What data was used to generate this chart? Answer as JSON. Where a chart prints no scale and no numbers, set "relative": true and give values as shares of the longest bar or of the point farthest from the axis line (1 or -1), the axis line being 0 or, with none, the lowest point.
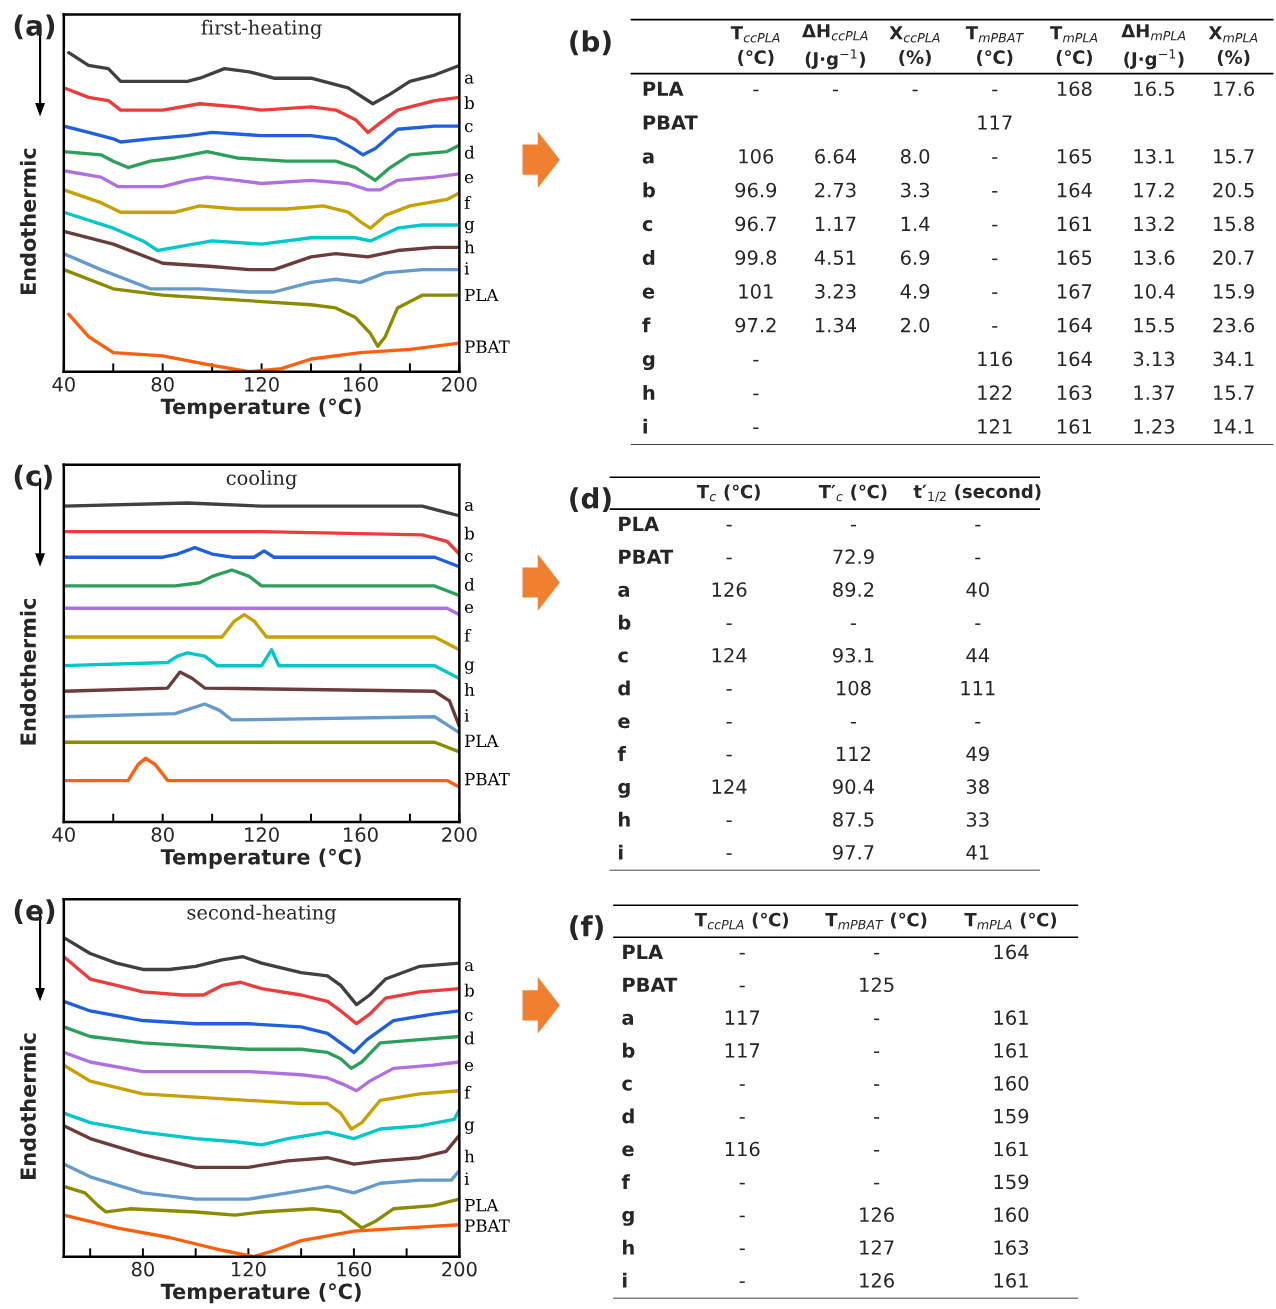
{
  "chart_data": [
    {
      "type": "line",
      "title": "first-heating",
      "xlabel": "Temperature (°C)",
      "ylabel": "Endothermic",
      "annotations": [
        "(a)"
      ],
      "relative": true,
      "xlim": [
        40,
        200
      ],
      "xticks": [
        40,
        {
          "value": 60,
          "label": null
        },
        80,
        {
          "value": 100,
          "label": null
        },
        120,
        {
          "value": 140,
          "label": null
        },
        160,
        {
          "value": 180,
          "label": null
        },
        200
      ],
      "series": [
        {
          "name": "a",
          "color": "#404040",
          "x": [
            42,
            50,
            58,
            63,
            80,
            90,
            95,
            105,
            115,
            125,
            140,
            155,
            165,
            172,
            180,
            190,
            200
          ],
          "values": [
            1.0,
            0.96,
            0.95,
            0.91,
            0.91,
            0.91,
            0.92,
            0.95,
            0.94,
            0.92,
            0.92,
            0.89,
            0.84,
            0.87,
            0.91,
            0.93,
            0.96
          ]
        },
        {
          "name": "b",
          "color": "#ef3b3b",
          "x": [
            40,
            50,
            58,
            63,
            80,
            95,
            110,
            120,
            140,
            150,
            158,
            163,
            168,
            175,
            190,
            200
          ],
          "values": [
            0.89,
            0.86,
            0.85,
            0.82,
            0.82,
            0.84,
            0.83,
            0.82,
            0.83,
            0.82,
            0.79,
            0.75,
            0.78,
            0.82,
            0.85,
            0.86
          ]
        },
        {
          "name": "c",
          "color": "#1f5fe0",
          "x": [
            40,
            50,
            60,
            63,
            75,
            90,
            100,
            120,
            140,
            150,
            157,
            161,
            166,
            175,
            190,
            200
          ],
          "values": [
            0.77,
            0.75,
            0.73,
            0.72,
            0.73,
            0.74,
            0.75,
            0.74,
            0.74,
            0.73,
            0.7,
            0.68,
            0.7,
            0.76,
            0.77,
            0.77
          ]
        },
        {
          "name": "d",
          "color": "#2ca05a",
          "x": [
            40,
            55,
            60,
            66,
            75,
            85,
            98,
            110,
            130,
            150,
            158,
            166,
            172,
            180,
            195,
            200
          ],
          "values": [
            0.69,
            0.68,
            0.66,
            0.64,
            0.66,
            0.67,
            0.69,
            0.67,
            0.66,
            0.66,
            0.64,
            0.6,
            0.64,
            0.68,
            0.69,
            0.71
          ]
        },
        {
          "name": "e",
          "color": "#b070e0",
          "x": [
            40,
            55,
            62,
            80,
            90,
            98,
            110,
            120,
            140,
            155,
            163,
            168,
            175,
            190,
            200
          ],
          "values": [
            0.63,
            0.61,
            0.58,
            0.58,
            0.6,
            0.61,
            0.6,
            0.59,
            0.6,
            0.59,
            0.57,
            0.57,
            0.6,
            0.61,
            0.62
          ]
        },
        {
          "name": "f",
          "color": "#c8a000",
          "x": [
            40,
            55,
            63,
            85,
            95,
            110,
            130,
            145,
            155,
            160,
            164,
            170,
            180,
            195,
            200
          ],
          "values": [
            0.57,
            0.53,
            0.5,
            0.5,
            0.52,
            0.51,
            0.51,
            0.52,
            0.5,
            0.47,
            0.45,
            0.49,
            0.52,
            0.54,
            0.56
          ]
        },
        {
          "name": "g",
          "color": "#00c8c8",
          "x": [
            40,
            60,
            72,
            78,
            85,
            100,
            120,
            140,
            150,
            158,
            164,
            175,
            185,
            200
          ],
          "values": [
            0.5,
            0.45,
            0.41,
            0.38,
            0.39,
            0.41,
            0.4,
            0.42,
            0.42,
            0.42,
            0.41,
            0.45,
            0.46,
            0.46
          ]
        },
        {
          "name": "h",
          "color": "#6b3c3c",
          "x": [
            40,
            60,
            80,
            100,
            115,
            125,
            140,
            150,
            163,
            175,
            190,
            200
          ],
          "values": [
            0.44,
            0.4,
            0.34,
            0.33,
            0.32,
            0.32,
            0.36,
            0.37,
            0.36,
            0.38,
            0.39,
            0.39
          ]
        },
        {
          "name": "i",
          "color": "#6699cc",
          "x": [
            40,
            55,
            75,
            95,
            115,
            125,
            140,
            150,
            160,
            170,
            185,
            200
          ],
          "values": [
            0.37,
            0.32,
            0.26,
            0.26,
            0.25,
            0.25,
            0.28,
            0.29,
            0.28,
            0.31,
            0.32,
            0.32
          ]
        },
        {
          "name": "PLA",
          "color": "#8b8b00",
          "x": [
            40,
            60,
            80,
            100,
            120,
            140,
            150,
            158,
            164,
            167,
            170,
            175,
            185,
            200
          ],
          "values": [
            0.32,
            0.26,
            0.24,
            0.23,
            0.22,
            0.21,
            0.2,
            0.17,
            0.12,
            0.08,
            0.11,
            0.2,
            0.24,
            0.24
          ]
        },
        {
          "name": "PBAT",
          "color": "#ff6010",
          "x": [
            42,
            50,
            60,
            80,
            100,
            115,
            128,
            140,
            160,
            180,
            200
          ],
          "values": [
            0.18,
            0.11,
            0.06,
            0.05,
            0.02,
            0.0,
            0.01,
            0.04,
            0.06,
            0.07,
            0.09
          ]
        }
      ]
    },
    {
      "type": "other",
      "annotations": [
        "(b)"
      ],
      "categories": [
        "T$_{ccPLA}$\n(℃)",
        "ΔH$_{ccPLA}$\n(J·g$^{−1}$)",
        "X$_{ccPLA}$\n(%)",
        "T$_{mPBAT}$\n(℃)",
        "T$_{mPLA}$\n(℃)",
        "ΔH$_{mPLA}$\n(J·g$^{−1}$)",
        "X$_{mPLA}$\n(%)"
      ],
      "y_categories": [
        "PLA",
        "PBAT",
        "a",
        "b",
        "c",
        "d",
        "e",
        "f",
        "g",
        "h",
        "i"
      ],
      "cell_labels": [
        [
          "-",
          "-",
          "-",
          "-",
          "168",
          "16.5",
          "17.6"
        ],
        [
          null,
          null,
          null,
          "117",
          null,
          null,
          null
        ],
        [
          "106",
          "6.64",
          "8.0",
          "-",
          "165",
          "13.1",
          "15.7"
        ],
        [
          "96.9",
          "2.73",
          "3.3",
          "-",
          "164",
          "17.2",
          "20.5"
        ],
        [
          "96.7",
          "1.17",
          "1.4",
          "-",
          "161",
          "13.2",
          "15.8"
        ],
        [
          "99.8",
          "4.51",
          "6.9",
          "-",
          "165",
          "13.6",
          "20.7"
        ],
        [
          "101",
          "3.23",
          "4.9",
          "-",
          "167",
          "10.4",
          "15.9"
        ],
        [
          "97.2",
          "1.34",
          "2.0",
          "-",
          "164",
          "15.5",
          "23.6"
        ],
        [
          "-",
          null,
          null,
          "116",
          "164",
          "3.13",
          "34.1"
        ],
        [
          "-",
          null,
          null,
          "122",
          "163",
          "1.37",
          "15.7"
        ],
        [
          "-",
          null,
          null,
          "121",
          "161",
          "1.23",
          "14.1"
        ]
      ]
    },
    {
      "type": "line",
      "title": "cooling",
      "xlabel": "Temperature (°C)",
      "ylabel": "Endothermic",
      "annotations": [
        "(c)"
      ],
      "relative": true,
      "xlim": [
        40,
        200
      ],
      "xticks": [
        40,
        {
          "value": 60,
          "label": null
        },
        80,
        {
          "value": 100,
          "label": null
        },
        120,
        {
          "value": 140,
          "label": null
        },
        160,
        {
          "value": 180,
          "label": null
        },
        200
      ],
      "series": [
        {
          "name": "a",
          "color": "#404040",
          "x": [
            40,
            90,
            120,
            185,
            195,
            200
          ],
          "values": [
            0.99,
            1.0,
            0.99,
            0.99,
            0.97,
            0.96
          ]
        },
        {
          "name": "b",
          "color": "#ef3b3b",
          "x": [
            40,
            120,
            185,
            195,
            200
          ],
          "values": [
            0.91,
            0.91,
            0.9,
            0.88,
            0.84
          ]
        },
        {
          "name": "c",
          "color": "#1f5fe0",
          "x": [
            40,
            80,
            86,
            93,
            100,
            108,
            117,
            121,
            125,
            190,
            200
          ],
          "values": [
            0.83,
            0.83,
            0.84,
            0.86,
            0.84,
            0.83,
            0.83,
            0.85,
            0.83,
            0.83,
            0.8
          ]
        },
        {
          "name": "d",
          "color": "#2ca05a",
          "x": [
            40,
            85,
            95,
            100,
            108,
            115,
            120,
            190,
            200
          ],
          "values": [
            0.74,
            0.74,
            0.75,
            0.77,
            0.79,
            0.77,
            0.74,
            0.74,
            0.71
          ]
        },
        {
          "name": "e",
          "color": "#b070e0",
          "x": [
            40,
            195,
            200
          ],
          "values": [
            0.67,
            0.67,
            0.65
          ]
        },
        {
          "name": "f",
          "color": "#c8a000",
          "x": [
            40,
            104,
            109,
            113,
            117,
            122,
            190,
            200
          ],
          "values": [
            0.58,
            0.58,
            0.63,
            0.65,
            0.63,
            0.58,
            0.58,
            0.54
          ]
        },
        {
          "name": "g",
          "color": "#00c8c8",
          "x": [
            40,
            82,
            86,
            90,
            97,
            102,
            120,
            124,
            127,
            190,
            200
          ],
          "values": [
            0.49,
            0.5,
            0.52,
            0.53,
            0.52,
            0.49,
            0.49,
            0.54,
            0.49,
            0.49,
            0.45
          ]
        },
        {
          "name": "h",
          "color": "#6b3c3c",
          "x": [
            40,
            82,
            87,
            92,
            97,
            190,
            196,
            200
          ],
          "values": [
            0.41,
            0.42,
            0.47,
            0.45,
            0.42,
            0.41,
            0.38,
            0.3
          ]
        },
        {
          "name": "i",
          "color": "#6699cc",
          "x": [
            40,
            85,
            97,
            103,
            108,
            190,
            200
          ],
          "values": [
            0.33,
            0.34,
            0.37,
            0.35,
            0.32,
            0.33,
            0.28
          ]
        },
        {
          "name": "PLA",
          "color": "#8b8b00",
          "x": [
            40,
            190,
            200
          ],
          "values": [
            0.25,
            0.25,
            0.22
          ]
        },
        {
          "name": "PBAT",
          "color": "#ff6010",
          "x": [
            40,
            66,
            70,
            73,
            77,
            82,
            195,
            200
          ],
          "values": [
            0.13,
            0.13,
            0.18,
            0.2,
            0.18,
            0.13,
            0.13,
            0.11
          ]
        }
      ]
    },
    {
      "type": "other",
      "annotations": [
        "(d)"
      ],
      "categories": [
        "T$_{c}$ (℃)",
        "T′$_{c}$ (℃)",
        "t′$_{1/2}$ (second)"
      ],
      "y_categories": [
        "PLA",
        "PBAT",
        "a",
        "b",
        "c",
        "d",
        "e",
        "f",
        "g",
        "h",
        "i"
      ],
      "cell_labels": [
        [
          "-",
          "-",
          "-"
        ],
        [
          "-",
          "72.9",
          "-"
        ],
        [
          "126",
          "89.2",
          "40"
        ],
        [
          "-",
          "-",
          "-"
        ],
        [
          "124",
          "93.1",
          "44"
        ],
        [
          "-",
          "108",
          "111"
        ],
        [
          "-",
          "-",
          "-"
        ],
        [
          "-",
          "112",
          "49"
        ],
        [
          "124",
          "90.4",
          "38"
        ],
        [
          "-",
          "87.5",
          "33"
        ],
        [
          "-",
          "97.7",
          "41"
        ]
      ]
    },
    {
      "type": "line",
      "title": "second-heating",
      "xlabel": "Temperature (°C)",
      "ylabel": "Endothermic",
      "annotations": [
        "(e)"
      ],
      "relative": true,
      "xlim": [
        50,
        200
      ],
      "xticks": [
        {
          "value": 60,
          "label": null
        },
        80,
        {
          "value": 100,
          "label": null
        },
        120,
        {
          "value": 140,
          "label": null
        },
        160,
        {
          "value": 180,
          "label": null
        },
        200
      ],
      "series": [
        {
          "name": "a",
          "color": "#404040",
          "x": [
            50,
            60,
            70,
            80,
            90,
            100,
            110,
            118,
            125,
            140,
            150,
            155,
            161,
            166,
            172,
            185,
            200
          ],
          "values": [
            1.0,
            0.95,
            0.92,
            0.9,
            0.9,
            0.91,
            0.93,
            0.94,
            0.92,
            0.89,
            0.88,
            0.85,
            0.79,
            0.82,
            0.87,
            0.91,
            0.92
          ]
        },
        {
          "name": "b",
          "color": "#ef3b3b",
          "x": [
            50,
            60,
            70,
            80,
            95,
            103,
            110,
            117,
            125,
            140,
            150,
            155,
            161,
            166,
            172,
            185,
            200
          ],
          "values": [
            0.94,
            0.87,
            0.85,
            0.83,
            0.82,
            0.82,
            0.85,
            0.86,
            0.84,
            0.82,
            0.8,
            0.77,
            0.73,
            0.76,
            0.81,
            0.83,
            0.84
          ]
        },
        {
          "name": "c",
          "color": "#1f5fe0",
          "x": [
            50,
            60,
            80,
            100,
            120,
            140,
            150,
            155,
            160,
            165,
            175,
            190,
            200
          ],
          "values": [
            0.8,
            0.77,
            0.74,
            0.73,
            0.73,
            0.72,
            0.7,
            0.67,
            0.64,
            0.68,
            0.74,
            0.76,
            0.77
          ]
        },
        {
          "name": "d",
          "color": "#2ca05a",
          "x": [
            50,
            60,
            80,
            100,
            120,
            140,
            150,
            155,
            159,
            163,
            170,
            185,
            200
          ],
          "values": [
            0.72,
            0.69,
            0.67,
            0.66,
            0.65,
            0.65,
            0.64,
            0.62,
            0.59,
            0.61,
            0.67,
            0.68,
            0.69
          ]
        },
        {
          "name": "e",
          "color": "#b070e0",
          "x": [
            50,
            60,
            80,
            100,
            120,
            140,
            150,
            156,
            161,
            166,
            175,
            190,
            200
          ],
          "values": [
            0.64,
            0.61,
            0.58,
            0.58,
            0.58,
            0.57,
            0.56,
            0.54,
            0.52,
            0.55,
            0.59,
            0.6,
            0.61
          ]
        },
        {
          "name": "f",
          "color": "#c8a000",
          "x": [
            50,
            60,
            80,
            100,
            120,
            140,
            150,
            155,
            159,
            163,
            170,
            185,
            200
          ],
          "values": [
            0.6,
            0.55,
            0.51,
            0.5,
            0.49,
            0.48,
            0.48,
            0.45,
            0.4,
            0.42,
            0.49,
            0.51,
            0.52
          ]
        },
        {
          "name": "g",
          "color": "#00c8c8",
          "x": [
            50,
            60,
            80,
            100,
            115,
            125,
            135,
            150,
            160,
            170,
            185,
            198,
            200
          ],
          "values": [
            0.45,
            0.42,
            0.39,
            0.37,
            0.36,
            0.35,
            0.37,
            0.39,
            0.37,
            0.4,
            0.41,
            0.43,
            0.46
          ]
        },
        {
          "name": "h",
          "color": "#6b3c3c",
          "x": [
            50,
            60,
            80,
            100,
            120,
            135,
            150,
            160,
            170,
            185,
            195,
            200
          ],
          "values": [
            0.41,
            0.37,
            0.32,
            0.28,
            0.28,
            0.3,
            0.31,
            0.29,
            0.3,
            0.31,
            0.33,
            0.38
          ]
        },
        {
          "name": "i",
          "color": "#6699cc",
          "x": [
            50,
            60,
            80,
            100,
            120,
            135,
            150,
            160,
            170,
            185,
            197,
            200
          ],
          "values": [
            0.29,
            0.25,
            0.2,
            0.18,
            0.18,
            0.2,
            0.22,
            0.2,
            0.23,
            0.24,
            0.24,
            0.27
          ]
        },
        {
          "name": "PLA",
          "color": "#8b8b00",
          "x": [
            50,
            58,
            63,
            66,
            75,
            100,
            115,
            125,
            145,
            155,
            163,
            168,
            175,
            190,
            200
          ],
          "values": [
            0.22,
            0.2,
            0.16,
            0.14,
            0.15,
            0.14,
            0.13,
            0.14,
            0.15,
            0.14,
            0.09,
            0.11,
            0.15,
            0.16,
            0.18
          ]
        },
        {
          "name": "PBAT",
          "color": "#ff6010",
          "x": [
            50,
            70,
            90,
            110,
            122,
            130,
            140,
            160,
            180,
            200
          ],
          "values": [
            0.13,
            0.09,
            0.06,
            0.02,
            0.0,
            0.02,
            0.05,
            0.08,
            0.09,
            0.1
          ]
        }
      ]
    },
    {
      "type": "other",
      "annotations": [
        "(f)"
      ],
      "categories": [
        "T$_{ccPLA}$ (℃)",
        "T$_{mPBAT}$ (℃)",
        "T$_{mPLA}$ (℃)"
      ],
      "y_categories": [
        "PLA",
        "PBAT",
        "a",
        "b",
        "c",
        "d",
        "e",
        "f",
        "g",
        "h",
        "i"
      ],
      "cell_labels": [
        [
          "-",
          "-",
          "164"
        ],
        [
          "-",
          "125",
          null
        ],
        [
          "117",
          "-",
          "161"
        ],
        [
          "117",
          "-",
          "161"
        ],
        [
          "-",
          "-",
          "160"
        ],
        [
          "-",
          "-",
          "159"
        ],
        [
          "116",
          "-",
          "161"
        ],
        [
          "-",
          "-",
          "159"
        ],
        [
          "-",
          "126",
          "160"
        ],
        [
          "-",
          "127",
          "163"
        ],
        [
          "-",
          "126",
          "161"
        ]
      ]
    }
  ]
}
